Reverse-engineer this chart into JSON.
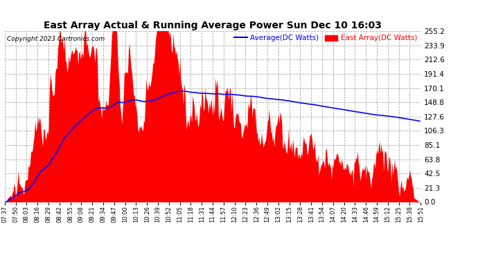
{
  "title": "East Array Actual & Running Average Power Sun Dec 10 16:03",
  "copyright": "Copyright 2023 Cartronics.com",
  "legend_avg": "Average(DC Watts)",
  "legend_east": "East Array(DC Watts)",
  "avg_color": "blue",
  "east_color": "red",
  "bg_color": "white",
  "grid_color": "#aaaaaa",
  "yticks": [
    0.0,
    21.3,
    42.5,
    63.8,
    85.1,
    106.3,
    127.6,
    148.8,
    170.1,
    191.4,
    212.6,
    233.9,
    255.2
  ],
  "ymax": 255.2,
  "xtick_labels": [
    "07:37",
    "07:50",
    "08:03",
    "08:16",
    "08:29",
    "08:42",
    "08:55",
    "09:08",
    "09:21",
    "09:34",
    "09:47",
    "10:00",
    "10:13",
    "10:26",
    "10:39",
    "10:52",
    "11:05",
    "11:18",
    "11:31",
    "11:44",
    "11:57",
    "12:10",
    "12:23",
    "12:36",
    "12:49",
    "13:02",
    "13:15",
    "13:28",
    "13:41",
    "13:54",
    "14:07",
    "14:20",
    "14:33",
    "14:46",
    "14:59",
    "15:12",
    "15:25",
    "15:38",
    "15:51"
  ]
}
